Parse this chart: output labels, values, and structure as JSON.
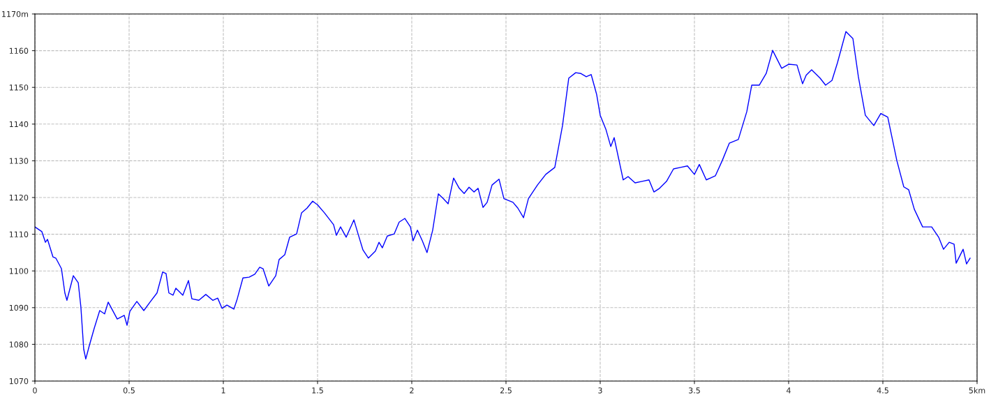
{
  "chart_data": {
    "type": "line",
    "x": [
      0,
      0.037,
      0.056,
      0.067,
      0.096,
      0.111,
      0.141,
      0.159,
      0.17,
      0.204,
      0.23,
      0.244,
      0.259,
      0.27,
      0.289,
      0.315,
      0.344,
      0.37,
      0.389,
      0.437,
      0.474,
      0.489,
      0.504,
      0.541,
      0.578,
      0.611,
      0.648,
      0.678,
      0.696,
      0.711,
      0.733,
      0.748,
      0.785,
      0.815,
      0.833,
      0.87,
      0.907,
      0.944,
      0.97,
      0.993,
      1.019,
      1.056,
      1.074,
      1.104,
      1.137,
      1.167,
      1.193,
      1.211,
      1.241,
      1.278,
      1.296,
      1.326,
      1.352,
      1.389,
      1.415,
      1.444,
      1.474,
      1.5,
      1.537,
      1.585,
      1.6,
      1.622,
      1.652,
      1.693,
      1.715,
      1.741,
      1.77,
      1.807,
      1.826,
      1.844,
      1.87,
      1.907,
      1.933,
      1.963,
      1.993,
      2.007,
      2.03,
      2.056,
      2.081,
      2.111,
      2.141,
      2.167,
      2.193,
      2.222,
      2.252,
      2.278,
      2.304,
      2.33,
      2.352,
      2.378,
      2.4,
      2.426,
      2.463,
      2.489,
      2.537,
      2.563,
      2.593,
      2.619,
      2.667,
      2.711,
      2.759,
      2.8,
      2.833,
      2.87,
      2.896,
      2.926,
      2.952,
      2.981,
      3,
      3.03,
      3.056,
      3.074,
      3.122,
      3.148,
      3.185,
      3.222,
      3.259,
      3.285,
      3.315,
      3.352,
      3.389,
      3.426,
      3.463,
      3.5,
      3.526,
      3.563,
      3.611,
      3.648,
      3.685,
      3.733,
      3.778,
      3.804,
      3.844,
      3.881,
      3.915,
      3.963,
      4,
      4.044,
      4.074,
      4.093,
      4.122,
      4.167,
      4.196,
      4.23,
      4.259,
      4.304,
      4.341,
      4.37,
      4.407,
      4.452,
      4.489,
      4.526,
      4.574,
      4.611,
      4.637,
      4.667,
      4.711,
      4.759,
      4.796,
      4.822,
      4.852,
      4.878,
      4.889,
      4.926,
      4.944,
      4.963
    ],
    "series": [
      {
        "color": "#0000ff",
        "values": [
          1112,
          1110.7,
          1107.8,
          1108.6,
          1103.8,
          1103.5,
          1100.6,
          1094,
          1092,
          1098.7,
          1096.8,
          1090.2,
          1078.7,
          1076,
          1079.7,
          1084.4,
          1089.2,
          1088.3,
          1091.5,
          1086.9,
          1087.9,
          1085.2,
          1089,
          1091.7,
          1089.2,
          1091.5,
          1094,
          1099.7,
          1099.3,
          1094,
          1093.4,
          1095.3,
          1093.4,
          1097.4,
          1092.4,
          1092,
          1093.6,
          1092,
          1092.6,
          1089.8,
          1090.7,
          1089.6,
          1092.4,
          1098.1,
          1098.3,
          1099.1,
          1101,
          1100.6,
          1095.9,
          1098.7,
          1103.1,
          1104.4,
          1109.2,
          1110.1,
          1115.8,
          1117.1,
          1119,
          1118,
          1115.8,
          1112.6,
          1109.7,
          1112,
          1109.2,
          1113.9,
          1110.1,
          1105.7,
          1103.5,
          1105.4,
          1107.8,
          1106.3,
          1109.5,
          1110.1,
          1113.3,
          1114.3,
          1112,
          1108.2,
          1111.1,
          1108.2,
          1105,
          1111.1,
          1121,
          1119.7,
          1118.3,
          1125.3,
          1122.5,
          1121.1,
          1122.8,
          1121.5,
          1122.5,
          1117.3,
          1118.7,
          1123.4,
          1125,
          1119.7,
          1118.7,
          1117.1,
          1114.5,
          1119.7,
          1123.4,
          1126.3,
          1128.2,
          1139.6,
          1152.5,
          1154,
          1153.8,
          1152.9,
          1153.5,
          1148.1,
          1142.4,
          1138.6,
          1133.9,
          1136.3,
          1124.8,
          1125.7,
          1124,
          1124.4,
          1124.8,
          1121.5,
          1122.5,
          1124.4,
          1127.8,
          1128.2,
          1128.6,
          1126.3,
          1129,
          1124.8,
          1125.9,
          1130.1,
          1134.8,
          1135.8,
          1143.4,
          1150.6,
          1150.6,
          1153.8,
          1160.1,
          1155.2,
          1156.3,
          1156.1,
          1151,
          1153.3,
          1154.8,
          1152.5,
          1150.6,
          1151.9,
          1156.7,
          1165.2,
          1163.3,
          1152.9,
          1142.4,
          1139.6,
          1142.9,
          1141.9,
          1130.1,
          1122.9,
          1122.1,
          1116.8,
          1112,
          1112,
          1109.2,
          1105.9,
          1107.8,
          1107.3,
          1102.1,
          1105.9,
          1101.9,
          1103.5
        ]
      }
    ],
    "xlim": [
      0,
      5
    ],
    "ylim": [
      1070,
      1170
    ],
    "xticks": [
      0,
      0.5,
      1,
      1.5,
      2,
      2.5,
      3,
      3.5,
      4,
      4.5,
      {
        "value": 5,
        "label": "5km"
      }
    ],
    "yticks": [
      1070,
      1080,
      1090,
      1100,
      1110,
      1120,
      1130,
      1140,
      1150,
      1160,
      {
        "value": 1170,
        "label": "1170m"
      }
    ],
    "grid": true,
    "line_style": "solid"
  }
}
